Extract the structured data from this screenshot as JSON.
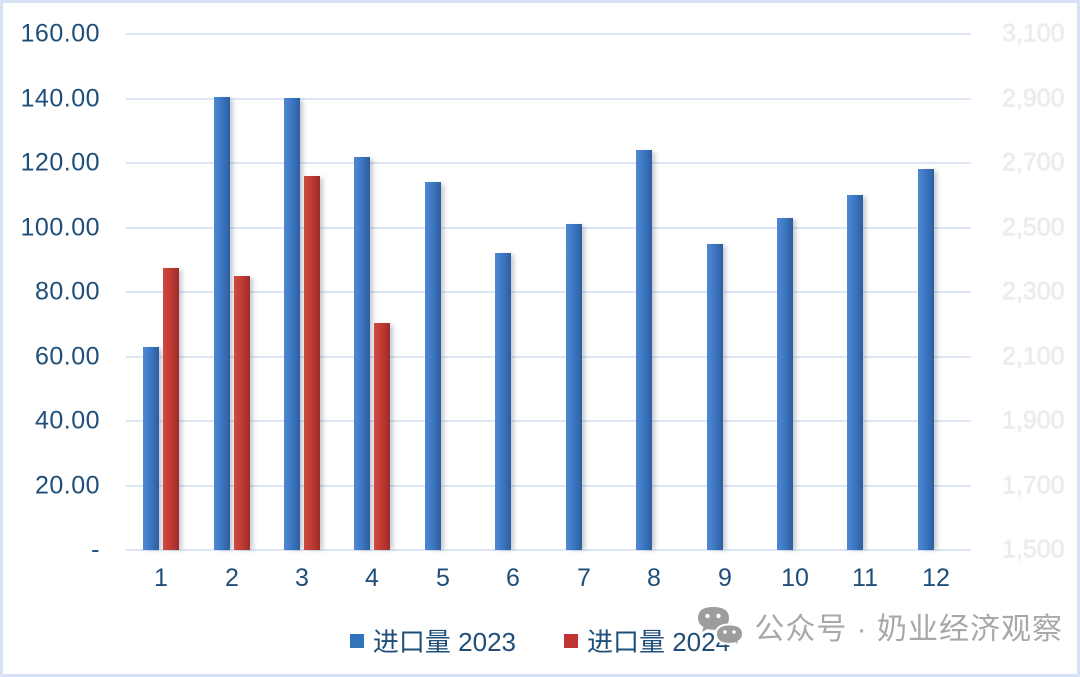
{
  "chart_data": {
    "type": "bar",
    "title": "",
    "xlabel": "",
    "ylabel": "",
    "categories": [
      "1",
      "2",
      "3",
      "4",
      "5",
      "6",
      "7",
      "8",
      "9",
      "10",
      "11",
      "12"
    ],
    "series": [
      {
        "name": "进口量 2023",
        "color": "#3d78c5",
        "values": [
          63,
          140.5,
          140,
          122,
          114,
          92,
          101,
          124,
          95,
          103,
          110,
          118
        ]
      },
      {
        "name": "进口量 2024",
        "color": "#c23b34",
        "values": [
          87.5,
          85,
          116,
          70.5,
          null,
          null,
          null,
          null,
          null,
          null,
          null,
          null
        ]
      }
    ],
    "left_axis": {
      "min": 0,
      "max": 160,
      "step": 20,
      "ticks": [
        "160.00",
        "140.00",
        "120.00",
        "100.00",
        "80.00",
        "60.00",
        "40.00",
        "20.00",
        "-"
      ]
    },
    "right_axis": {
      "min": 1500,
      "max": 3100,
      "step": 200,
      "ticks": [
        "3,100",
        "2,900",
        "2,700",
        "2,500",
        "2,300",
        "2,100",
        "1,900",
        "1,700",
        "1,500"
      ]
    },
    "grid": true,
    "legend_position": "bottom"
  },
  "watermark": {
    "icon": "wechat-icon",
    "text": "公众号 · 奶业经济观察"
  },
  "colors": {
    "axis_text": "#1f4e79",
    "gridline": "#dce6f4",
    "frame_border": "#d7e3f4",
    "right_axis_text": "#ececec",
    "watermark_text": "#a8a8a8",
    "bar_blue": "#3d78c5",
    "bar_red": "#c23b34"
  }
}
